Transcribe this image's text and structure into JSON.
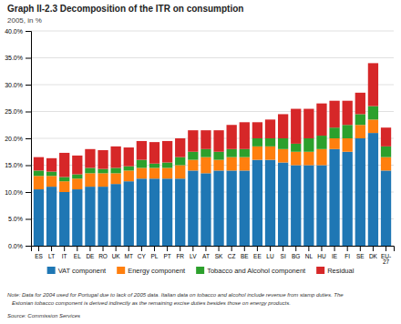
{
  "chart_data": {
    "type": "bar",
    "stacked": true,
    "title": "Graph II-2.3 Decomposition of the ITR on consumption",
    "subtitle": "2005, in %",
    "categories": [
      "ES",
      "LT",
      "IT",
      "EL",
      "DE",
      "RO",
      "UK",
      "MT",
      "CY",
      "PL",
      "PT",
      "FR",
      "LV",
      "AT",
      "SK",
      "CZ",
      "BE",
      "EE",
      "LU",
      "SI",
      "BG",
      "NL",
      "HU",
      "IE",
      "FI",
      "SE",
      "DK",
      "EU-27"
    ],
    "series": [
      {
        "name": "VAT component",
        "values": [
          10.5,
          11.0,
          10.0,
          10.5,
          11.0,
          11.0,
          11.5,
          12.0,
          12.5,
          12.5,
          12.5,
          12.5,
          14.0,
          13.5,
          14.0,
          14.0,
          14.0,
          16.0,
          16.0,
          15.5,
          15.0,
          15.0,
          15.0,
          18.0,
          17.5,
          20.0,
          21.0,
          14.0
        ]
      },
      {
        "name": "Energy component",
        "values": [
          2.5,
          2.0,
          2.0,
          2.0,
          2.5,
          2.5,
          2.0,
          2.0,
          2.0,
          2.0,
          2.0,
          2.5,
          2.0,
          3.0,
          2.0,
          2.5,
          2.5,
          2.5,
          2.5,
          2.5,
          2.5,
          2.5,
          3.0,
          2.0,
          2.5,
          2.5,
          2.5,
          2.5
        ]
      },
      {
        "name": "Tobacco and Alcohol component",
        "values": [
          1.0,
          0.8,
          0.8,
          0.8,
          1.0,
          0.8,
          1.0,
          0.8,
          1.5,
          0.8,
          1.0,
          1.5,
          1.5,
          1.5,
          1.5,
          1.5,
          1.5,
          1.5,
          1.5,
          2.0,
          1.5,
          2.5,
          2.5,
          2.0,
          2.5,
          2.0,
          2.5,
          2.0
        ]
      },
      {
        "name": "Residual",
        "values": [
          2.5,
          2.5,
          4.5,
          3.5,
          3.5,
          3.5,
          4.0,
          3.5,
          3.5,
          4.0,
          4.0,
          3.5,
          4.0,
          3.5,
          4.0,
          4.5,
          5.0,
          3.0,
          3.5,
          4.5,
          6.5,
          5.5,
          6.0,
          5.0,
          4.5,
          4.0,
          8.0,
          3.5
        ]
      }
    ],
    "ylim": [
      0.0,
      40.0
    ],
    "yticks": [
      {
        "value": 0.0,
        "label": "0.0%"
      },
      {
        "value": 5.0,
        "label": "5.0%"
      },
      {
        "value": 10.0,
        "label": "10.0%"
      },
      {
        "value": 15.0,
        "label": "15.0%"
      },
      {
        "value": 20.0,
        "label": "20.0%"
      },
      {
        "value": 25.0,
        "label": "25.0%"
      },
      {
        "value": 30.0,
        "label": "30.0%"
      },
      {
        "value": 35.0,
        "label": "35.0%"
      },
      {
        "value": 40.0,
        "label": "40.0%"
      }
    ],
    "grid": true,
    "legend": "bottom",
    "annotations": [
      "Note: Data for 2004 used for Portugal due to lack of 2005 data. Italian data on tobacco and alcohol include revenue from stamp duties. The",
      "   Estonian tobacco component is derived indirectly as the remaining excise duties besides those on energy products.",
      "Source: Commission Services"
    ]
  }
}
